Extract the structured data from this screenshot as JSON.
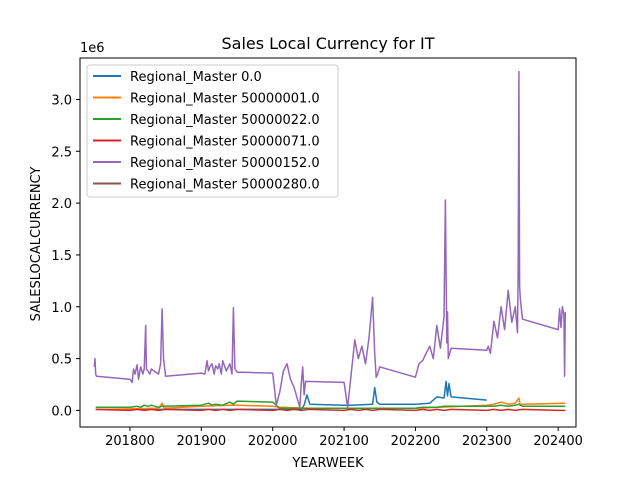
{
  "chart_data": {
    "type": "line",
    "title": "Sales Local Currency for IT",
    "xlabel": "YEARWEEK",
    "ylabel": "SALESLOCALCURRENCY",
    "y_multiplier_label": "1e6",
    "xlim": [
      201730,
      202425
    ],
    "ylim": [
      -0.16,
      3.4
    ],
    "x_ticks": [
      201800,
      201900,
      202000,
      202100,
      202200,
      202300,
      202400
    ],
    "x_tick_labels": [
      "201800",
      "201900",
      "202000",
      "202100",
      "202200",
      "202300",
      "202400"
    ],
    "y_ticks": [
      0.0,
      0.5,
      1.0,
      1.5,
      2.0,
      2.5,
      3.0
    ],
    "y_tick_labels": [
      "0.0",
      "0.5",
      "1.0",
      "1.5",
      "2.0",
      "2.5",
      "3.0"
    ],
    "grid": false,
    "legend_position": "top-left",
    "series": [
      {
        "name": "Regional_Master 0.0",
        "color": "#1f77b4",
        "x": [
          201752,
          201850,
          202040,
          202044,
          202048,
          202052,
          202100,
          202110,
          202140,
          202143,
          202146,
          202150,
          202200,
          202220,
          202230,
          202240,
          202243,
          202245,
          202247,
          202250,
          202300
        ],
        "y": [
          0.01,
          0.01,
          0.01,
          0.05,
          0.15,
          0.06,
          0.05,
          0.05,
          0.06,
          0.22,
          0.08,
          0.06,
          0.06,
          0.07,
          0.13,
          0.12,
          0.28,
          0.14,
          0.26,
          0.13,
          0.1
        ]
      },
      {
        "name": "Regional_Master 50000001.0",
        "color": "#ff7f0e",
        "x": [
          201752,
          201840,
          201845,
          201848,
          201900,
          201940,
          201950,
          202000,
          202010,
          202050,
          202100,
          202200,
          202300,
          202310,
          202320,
          202330,
          202340,
          202345,
          202347,
          202350,
          202410
        ],
        "y": [
          0.01,
          0.02,
          0.07,
          0.02,
          0.04,
          0.05,
          0.05,
          0.04,
          0.03,
          0.02,
          0.02,
          0.02,
          0.05,
          0.06,
          0.08,
          0.06,
          0.07,
          0.12,
          0.05,
          0.06,
          0.07
        ]
      },
      {
        "name": "Regional_Master 50000022.0",
        "color": "#2ca02c",
        "x": [
          201752,
          201800,
          201810,
          201815,
          201820,
          201825,
          201830,
          201840,
          201845,
          201900,
          201910,
          201915,
          201920,
          201930,
          201940,
          201945,
          201950,
          202000,
          202010,
          202100,
          202200,
          202210,
          202230,
          202240,
          202300,
          202310,
          202320,
          202330,
          202340,
          202345,
          202350,
          202410
        ],
        "y": [
          0.03,
          0.03,
          0.04,
          0.03,
          0.05,
          0.04,
          0.05,
          0.03,
          0.04,
          0.05,
          0.07,
          0.05,
          0.06,
          0.05,
          0.08,
          0.06,
          0.09,
          0.08,
          0.02,
          0.02,
          0.02,
          0.03,
          0.03,
          0.04,
          0.04,
          0.04,
          0.05,
          0.04,
          0.05,
          0.06,
          0.04,
          0.04
        ]
      },
      {
        "name": "Regional_Master 50000071.0",
        "color": "#d62728",
        "x": [
          201752,
          201800,
          201810,
          201820,
          201830,
          201840,
          201850,
          201900,
          201910,
          201920,
          201930,
          201940,
          201950,
          202000,
          202010,
          202020,
          202030,
          202040,
          202050,
          202100,
          202110,
          202120,
          202130,
          202140,
          202150,
          202200,
          202210,
          202220,
          202230,
          202240,
          202250,
          202300,
          202310,
          202320,
          202330,
          202340,
          202350,
          202400,
          202410
        ],
        "y": [
          0.01,
          0.0,
          0.01,
          0.0,
          0.01,
          0.0,
          0.01,
          0.0,
          0.01,
          0.0,
          0.01,
          0.0,
          0.01,
          0.0,
          0.01,
          0.0,
          0.01,
          0.0,
          0.01,
          0.0,
          0.01,
          0.0,
          0.01,
          0.0,
          0.01,
          0.0,
          0.01,
          0.0,
          0.01,
          0.0,
          0.01,
          0.0,
          0.01,
          0.0,
          0.01,
          0.0,
          0.01,
          0.0,
          0.0
        ]
      },
      {
        "name": "Regional_Master 50000152.0",
        "color": "#9467bd",
        "x": [
          201750,
          201751,
          201752,
          201753,
          201800,
          201803,
          201805,
          201807,
          201810,
          201812,
          201815,
          201818,
          201820,
          201822,
          201823,
          201825,
          201828,
          201830,
          201840,
          201843,
          201845,
          201847,
          201850,
          201900,
          201905,
          201908,
          201910,
          201912,
          201915,
          201918,
          201920,
          201923,
          201925,
          201928,
          201930,
          201935,
          201940,
          201943,
          201945,
          201947,
          201950,
          202000,
          202005,
          202010,
          202015,
          202020,
          202025,
          202030,
          202035,
          202038,
          202040,
          202042,
          202044,
          202046,
          202100,
          202105,
          202110,
          202115,
          202120,
          202125,
          202130,
          202135,
          202140,
          202143,
          202145,
          202147,
          202150,
          202200,
          202205,
          202210,
          202215,
          202220,
          202225,
          202230,
          202235,
          202240,
          202242,
          202244,
          202245,
          202246,
          202248,
          202250,
          202300,
          202302,
          202305,
          202310,
          202315,
          202320,
          202325,
          202330,
          202335,
          202340,
          202343,
          202344,
          202345,
          202346,
          202347,
          202350,
          202400,
          202402,
          202404,
          202406,
          202408,
          202409,
          202410
        ],
        "y": [
          0.42,
          0.5,
          0.35,
          0.33,
          0.3,
          0.27,
          0.4,
          0.35,
          0.44,
          0.3,
          0.42,
          0.35,
          0.4,
          0.82,
          0.4,
          0.38,
          0.35,
          0.4,
          0.35,
          0.45,
          0.98,
          0.5,
          0.33,
          0.36,
          0.35,
          0.48,
          0.38,
          0.42,
          0.45,
          0.35,
          0.43,
          0.4,
          0.45,
          0.35,
          0.48,
          0.38,
          0.45,
          0.35,
          0.99,
          0.4,
          0.37,
          0.36,
          0.05,
          0.18,
          0.38,
          0.45,
          0.3,
          0.22,
          0.1,
          0.03,
          0.25,
          0.42,
          0.15,
          0.28,
          0.27,
          0.03,
          0.35,
          0.68,
          0.5,
          0.62,
          0.45,
          0.7,
          1.09,
          0.55,
          0.32,
          0.35,
          0.42,
          0.32,
          0.45,
          0.48,
          0.55,
          0.62,
          0.5,
          0.82,
          0.6,
          0.9,
          2.03,
          0.65,
          0.95,
          0.5,
          0.55,
          0.6,
          0.58,
          0.62,
          0.55,
          0.86,
          0.7,
          1.0,
          0.78,
          1.16,
          0.85,
          1.0,
          0.75,
          1.42,
          3.27,
          1.2,
          1.08,
          0.88,
          0.78,
          0.98,
          0.8,
          1.0,
          0.92,
          0.33,
          0.95
        ]
      },
      {
        "name": "Regional_Master 50000280.0",
        "color": "#8c564b",
        "x": [
          202040,
          202042
        ],
        "y": [
          0.0,
          0.0
        ]
      }
    ]
  }
}
